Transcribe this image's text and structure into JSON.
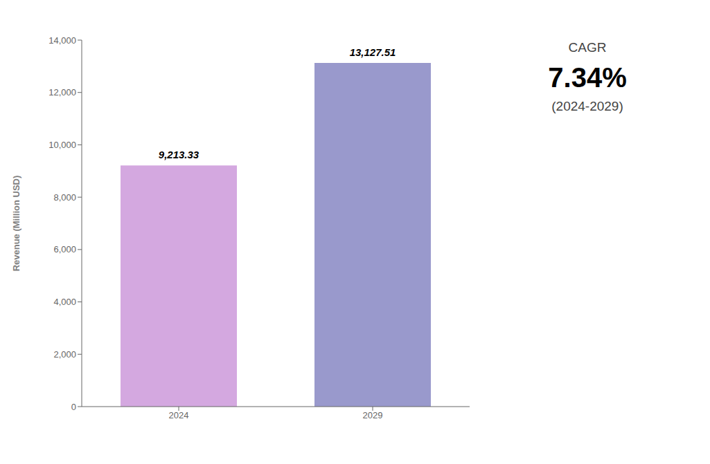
{
  "chart_data": {
    "type": "bar",
    "categories": [
      "2024",
      "2029"
    ],
    "values": [
      9213.33,
      13127.51
    ],
    "value_labels": [
      "9,213.33",
      "13,127.51"
    ],
    "colors": [
      "#d4a8e0",
      "#9999cc"
    ],
    "ylabel": "Revenue (Million USD)",
    "ylim": [
      0,
      14000
    ],
    "yticks": [
      0,
      {
        "value": 2000,
        "label": "2,000"
      },
      {
        "value": 4000,
        "label": "4,000"
      },
      {
        "value": 6000,
        "label": "6,000"
      },
      {
        "value": 8000,
        "label": "8,000"
      },
      {
        "value": 10000,
        "label": "10,000"
      },
      {
        "value": 12000,
        "label": "12,000"
      },
      {
        "value": 14000,
        "label": "14,000"
      }
    ],
    "grid": false,
    "data_labels": true,
    "annotations": [
      "CAGR",
      "7.34%",
      "(2024-2029)"
    ]
  }
}
